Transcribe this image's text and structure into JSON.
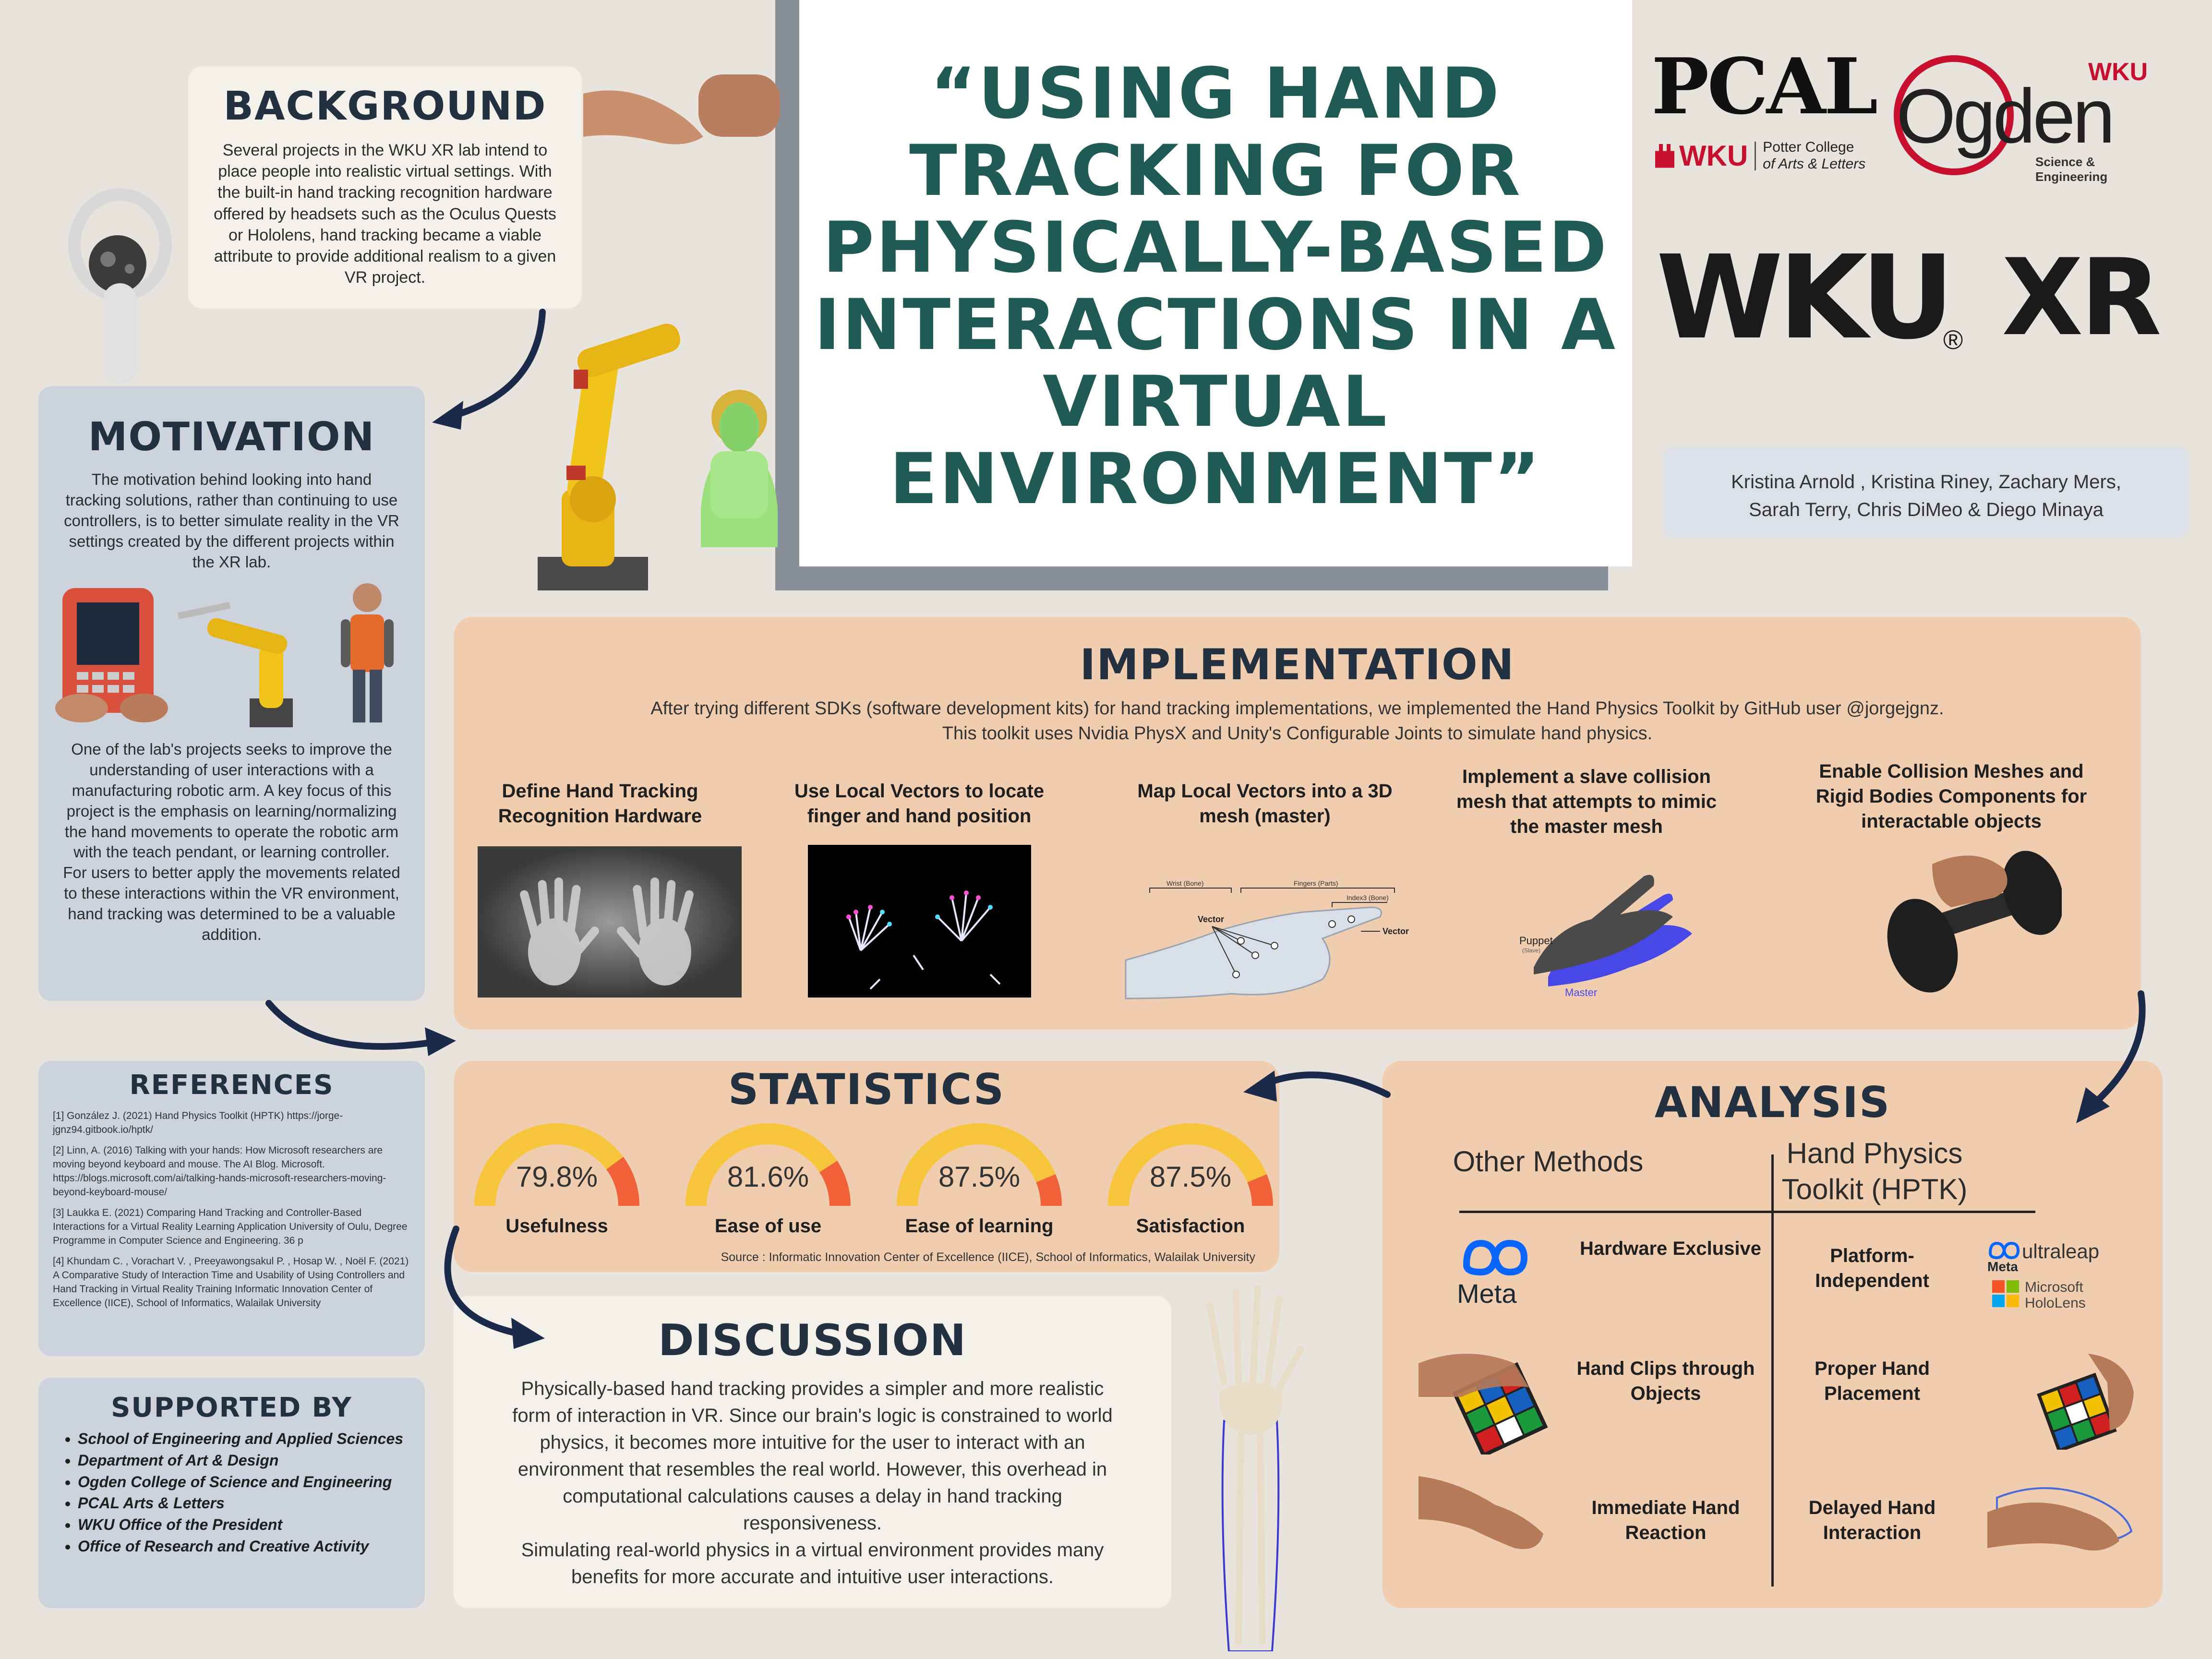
{
  "title": {
    "lines": [
      "“USING HAND",
      "TRACKING FOR",
      "PHYSICALLY-BASED",
      "INTERACTIONS IN A",
      "VIRTUAL",
      "ENVIRONMENT”"
    ]
  },
  "logos": {
    "pcal": "PCAL",
    "pcal_wku": "WKU",
    "pcal_college": "Potter College",
    "pcal_college2": "of Arts & Letters",
    "ogden_wku": "WKU",
    "ogden": "Ogden",
    "ogden_sub": "Science & Engineering",
    "wku": "WKU",
    "xr": "XR",
    "reg": "®"
  },
  "authors": {
    "line1": "Kristina Arnold , Kristina Riney, Zachary Mers,",
    "line2": "Sarah Terry, Chris DiMeo & Diego Minaya"
  },
  "background": {
    "heading": "BACKGROUND",
    "text": "Several projects in the WKU XR lab intend to place people into realistic virtual settings. With the built-in hand tracking recognition hardware offered by headsets such as the Oculus Quests or Hololens, hand tracking became a viable attribute to provide additional realism to a given VR project."
  },
  "motivation": {
    "heading": "MOTIVATION",
    "text1": "The motivation behind looking into hand tracking solutions, rather than continuing to use controllers, is to better simulate reality in the VR settings created by the different projects within the XR lab.",
    "text2": "One of the lab's projects seeks to improve the understanding of user interactions with a manufacturing robotic arm. A key focus of this project is the emphasis on learning/normalizing the hand movements to operate the robotic arm with the teach pendant, or learning controller. For users to better apply the movements related to these interactions within the VR environment, hand tracking was determined to be a valuable addition."
  },
  "implementation": {
    "heading": "IMPLEMENTATION",
    "intro1": "After trying different SDKs (software development kits) for hand tracking implementations, we implemented the Hand Physics Toolkit by GitHub user @jorgejgnz.",
    "intro2": "This toolkit uses Nvidia PhysX and Unity's Configurable Joints to simulate hand physics.",
    "steps": [
      "Define Hand Tracking Recognition Hardware",
      "Use Local Vectors to locate finger and hand position",
      "Map Local Vectors into a 3D mesh (master)",
      "Implement a slave collision mesh that attempts to mimic the master mesh",
      "Enable Collision Meshes and Rigid Bodies Components for interactable objects"
    ],
    "diagram": {
      "wrist": "Wrist (Bone)",
      "fingers": "Fingers (Parts)",
      "index3": "Index3 (Bone)",
      "vector": "Vector",
      "vector2": "Vector",
      "puppet": "Puppet",
      "puppet_sub": "(Slave)",
      "master": "Master"
    }
  },
  "statistics": {
    "heading": "STATISTICS",
    "gauges": [
      {
        "label": "Usefulness",
        "display": "79.8%",
        "value": 79.8
      },
      {
        "label": "Ease of use",
        "display": "81.6%",
        "value": 81.6
      },
      {
        "label": "Ease of learning",
        "display": "87.5%",
        "value": 87.5
      },
      {
        "label": "Satisfaction",
        "display": "87.5%",
        "value": 87.5
      }
    ],
    "source": "Source : Informatic Innovation Center of Excellence (IICE), School of Informatics, Walailak University"
  },
  "analysis": {
    "heading": "ANALYSIS",
    "col1": "Other Methods",
    "col2": "Hand Physics Toolkit (HPTK)",
    "rows": [
      {
        "left": "Hardware Exclusive",
        "right": "Platform-Independent"
      },
      {
        "left": "Hand Clips through Objects",
        "right": "Proper Hand Placement"
      },
      {
        "left": "Immediate Hand Reaction",
        "right": "Delayed Hand Interaction"
      }
    ],
    "meta": "Meta",
    "meta2": "Meta",
    "ultraleap": "ultraleap",
    "ms1": "Microsoft",
    "ms2": "HoloLens"
  },
  "references": {
    "heading": "REFERENCES",
    "items": [
      "[1] González J. (2021) Hand Physics Toolkit (HPTK) https://jorge-jgnz94.gitbook.io/hptk/",
      "[2] Linn, A. (2016) Talking with your hands: How Microsoft researchers are moving beyond keyboard and mouse. The AI Blog. Microsoft. https://blogs.microsoft.com/ai/talking-hands-microsoft-researchers-moving-beyond-keyboard-mouse/",
      "[3] Laukka E. (2021) Comparing Hand Tracking and Controller-Based Interactions for a Virtual Reality Learning Application University of Oulu, Degree Programme in Computer Science and Engineering. 36 p",
      "[4] Khundam C. , Vorachart V. , Preeyawongsakul P. , Hosap W. , Noël F. (2021) A Comparative Study of Interaction Time and Usability of Using Controllers and Hand Tracking in Virtual Reality Training Informatic Innovation Center of Excellence (IICE), School of Informatics, Walailak University"
    ]
  },
  "supported": {
    "heading": "SUPPORTED BY",
    "items": [
      "School of Engineering and Applied Sciences",
      "Department of Art & Design",
      "Ogden College of Science and Engineering",
      "PCAL Arts & Letters",
      "WKU Office of the President",
      "Office of  Research and Creative Activity"
    ]
  },
  "discussion": {
    "heading": "DISCUSSION",
    "text1": "Physically-based hand tracking provides a simpler and more realistic form of interaction in VR. Since our brain's logic is constrained to world physics, it becomes more intuitive for the user to interact with an environment that resembles the real world. However, this overhead in computational calculations causes a delay in hand tracking responsiveness.",
    "text2": "Simulating real-world physics in a virtual environment provides many benefits for more accurate and intuitive user interactions."
  },
  "colors": {
    "title": "#1f5a55",
    "heading": "#223040",
    "arrow": "#1b2a4a",
    "gauge_track": "#f7c53b",
    "gauge_fill": "#f0613a"
  }
}
